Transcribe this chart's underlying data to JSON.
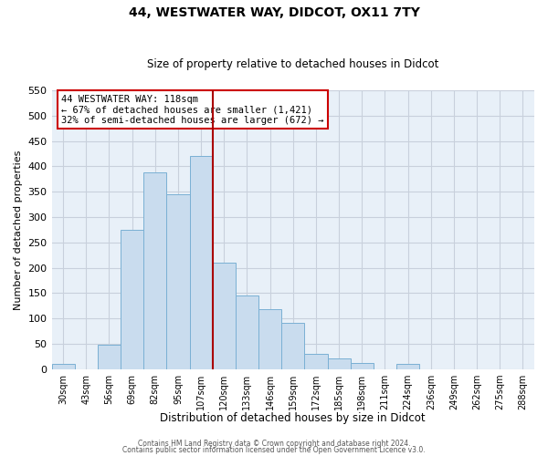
{
  "title": "44, WESTWATER WAY, DIDCOT, OX11 7TY",
  "subtitle": "Size of property relative to detached houses in Didcot",
  "xlabel": "Distribution of detached houses by size in Didcot",
  "ylabel": "Number of detached properties",
  "bin_labels": [
    "30sqm",
    "43sqm",
    "56sqm",
    "69sqm",
    "82sqm",
    "95sqm",
    "107sqm",
    "120sqm",
    "133sqm",
    "146sqm",
    "159sqm",
    "172sqm",
    "185sqm",
    "198sqm",
    "211sqm",
    "224sqm",
    "236sqm",
    "249sqm",
    "262sqm",
    "275sqm",
    "288sqm"
  ],
  "bar_heights": [
    11,
    0,
    48,
    275,
    388,
    345,
    420,
    210,
    145,
    118,
    92,
    31,
    22,
    12,
    0,
    10,
    0,
    0,
    0,
    0,
    0
  ],
  "bar_color": "#c9dcee",
  "bar_edge_color": "#7ab0d4",
  "marker_bin_index": 6.5,
  "marker_line_color": "#aa0000",
  "annotation_title": "44 WESTWATER WAY: 118sqm",
  "annotation_line1": "← 67% of detached houses are smaller (1,421)",
  "annotation_line2": "32% of semi-detached houses are larger (672) →",
  "annotation_box_color": "#ffffff",
  "annotation_box_edge": "#cc0000",
  "ylim": [
    0,
    550
  ],
  "yticks": [
    0,
    50,
    100,
    150,
    200,
    250,
    300,
    350,
    400,
    450,
    500,
    550
  ],
  "footer_line1": "Contains HM Land Registry data © Crown copyright and database right 2024.",
  "footer_line2": "Contains public sector information licensed under the Open Government Licence v3.0.",
  "background_color": "#ffffff",
  "axes_bg_color": "#e8f0f8",
  "grid_color": "#c8d0dc"
}
